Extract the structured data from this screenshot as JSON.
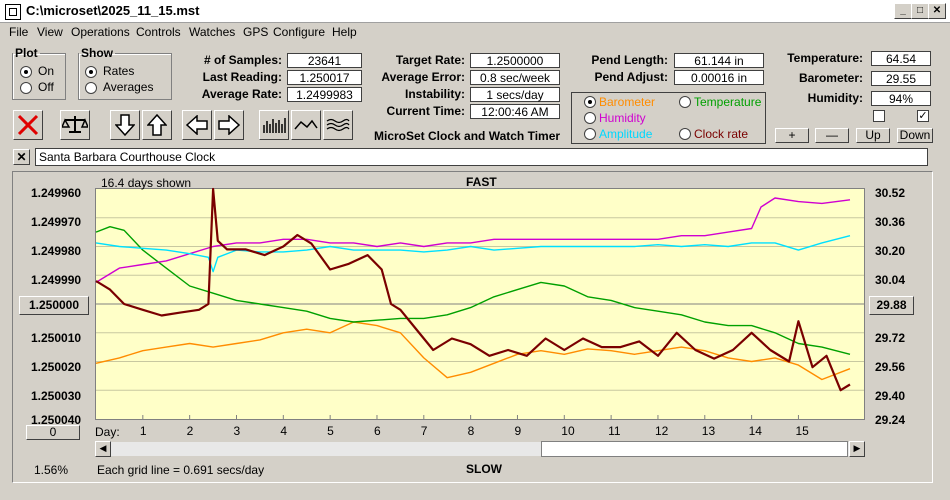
{
  "window": {
    "title": "C:\\microset\\2025_11_15.mst"
  },
  "menu": [
    "File",
    "View",
    "Operations",
    "Controls",
    "Watches",
    "GPS",
    "Configure",
    "Help"
  ],
  "plot_group": {
    "legend": "Plot",
    "on": "On",
    "off": "Off",
    "selected": "On"
  },
  "show_group": {
    "legend": "Show",
    "rates": "Rates",
    "averages": "Averages",
    "selected": "Rates"
  },
  "stats": {
    "samples_label": "# of Samples:",
    "samples": "23641",
    "last_label": "Last Reading:",
    "last": "1.250017",
    "avg_label": "Average Rate:",
    "avg": "1.2499983"
  },
  "targets": {
    "target_label": "Target Rate:",
    "target": "1.2500000",
    "error_label": "Average Error:",
    "error": "0.8 sec/week",
    "instab_label": "Instability:",
    "instab": "1 secs/day",
    "time_label": "Current Time:",
    "time": "12:00:46 AM",
    "app_name": "MicroSet Clock and Watch Timer"
  },
  "pendulum": {
    "length_label": "Pend Length:",
    "length": "61.144 in",
    "adjust_label": "Pend Adjust:",
    "adjust": "0.00016 in"
  },
  "env": {
    "temp_label": "Temperature:",
    "temp": "64.54",
    "baro_label": "Barometer:",
    "baro": "29.55",
    "hum_label": "Humidity:",
    "hum": "94%",
    "plus": "+",
    "minus": "—",
    "up": "Up",
    "down": "Down"
  },
  "aux_options": {
    "barometer": "Barometer",
    "temperature": "Temperature",
    "humidity": "Humidity",
    "amplitude": "Amplitude",
    "clock_rate": "Clock rate",
    "selected": "Barometer"
  },
  "clock_name": "Santa Barbara Courthouse Clock",
  "chart_data": {
    "type": "line",
    "days_shown": "16.4 days shown",
    "top_label": "FAST",
    "bottom_label": "SLOW",
    "left_ticks": [
      "1.249960",
      "1.249970",
      "1.249980",
      "1.249990",
      "1.250000",
      "1.250010",
      "1.250020",
      "1.250030",
      "1.250040"
    ],
    "left_center_button": "1.250000",
    "right_ticks": [
      "30.52",
      "30.36",
      "30.20",
      "30.04",
      "29.88",
      "29.72",
      "29.56",
      "29.40",
      "29.24"
    ],
    "right_center_button": "29.88",
    "x_label": "Day:",
    "x_ticks": [
      "1",
      "2",
      "3",
      "4",
      "5",
      "6",
      "7",
      "8",
      "9",
      "10",
      "11",
      "12",
      "13",
      "14",
      "15"
    ],
    "grid_note": "Each grid line = 0.691 secs/day",
    "zoom_button": "0",
    "percent": "1.56%",
    "ylim_rate": [
      1.24996,
      1.25004
    ],
    "ylim_baro": [
      29.24,
      30.52
    ],
    "xlim_days": [
      0,
      16.4
    ],
    "series": [
      {
        "name": "Clock rate",
        "color": "#7a0000",
        "x": [
          0,
          0.3,
          0.6,
          1,
          1.4,
          1.8,
          2.2,
          2.4,
          2.5,
          2.6,
          2.8,
          3.2,
          3.6,
          4,
          4.3,
          4.6,
          5,
          5.4,
          5.8,
          6.1,
          6.3,
          6.5,
          6.8,
          7.2,
          7.6,
          8,
          8.4,
          8.8,
          9.2,
          9.6,
          10,
          10.4,
          10.8,
          11.2,
          11.6,
          12,
          12.4,
          12.8,
          13.2,
          13.6,
          14,
          14.4,
          14.8,
          15,
          15.3,
          15.6,
          15.9,
          16.1
        ],
        "y": [
          1.249992,
          1.249995,
          1.25,
          1.250002,
          1.250004,
          1.250003,
          1.250002,
          1.25,
          1.24996,
          1.249978,
          1.249981,
          1.249981,
          1.249983,
          1.24998,
          1.249976,
          1.249979,
          1.249988,
          1.249986,
          1.249983,
          1.249988,
          1.25,
          1.250002,
          1.250008,
          1.250016,
          1.250012,
          1.250014,
          1.250018,
          1.250016,
          1.250018,
          1.250012,
          1.250016,
          1.250012,
          1.250015,
          1.250015,
          1.250013,
          1.250018,
          1.25001,
          1.250016,
          1.250019,
          1.250016,
          1.25001,
          1.250016,
          1.25002,
          1.250006,
          1.250022,
          1.250018,
          1.25003,
          1.250028
        ]
      },
      {
        "name": "Barometer",
        "color": "#ff8c00",
        "x": [
          0,
          0.5,
          1,
          1.5,
          2,
          2.5,
          3,
          3.5,
          4,
          4.5,
          5,
          5.5,
          6,
          6.5,
          7,
          7.5,
          8,
          8.5,
          9,
          9.5,
          10,
          10.5,
          11,
          11.5,
          12,
          12.5,
          13,
          13.5,
          14,
          14.5,
          15,
          15.5,
          16.1
        ],
        "y": [
          29.55,
          29.58,
          29.62,
          29.64,
          29.66,
          29.64,
          29.66,
          29.68,
          29.72,
          29.74,
          29.72,
          29.78,
          29.76,
          29.72,
          29.58,
          29.47,
          29.5,
          29.55,
          29.6,
          29.62,
          29.6,
          29.63,
          29.62,
          29.6,
          29.62,
          29.64,
          29.62,
          29.58,
          29.56,
          29.58,
          29.54,
          29.46,
          29.52
        ]
      },
      {
        "name": "Temperature",
        "color": "#00a000",
        "x": [
          0,
          0.3,
          0.6,
          1,
          1.5,
          2,
          2.5,
          3,
          3.5,
          4,
          4.5,
          5,
          5.5,
          6,
          6.5,
          7,
          7.5,
          8,
          8.5,
          9,
          9.5,
          10,
          10.5,
          11,
          11.5,
          12,
          12.5,
          13,
          13.5,
          14,
          14.5,
          15,
          15.5,
          16.1
        ],
        "y": [
          30.28,
          30.31,
          30.29,
          30.18,
          30.08,
          29.98,
          29.94,
          29.9,
          29.88,
          29.86,
          29.84,
          29.8,
          29.78,
          29.79,
          29.8,
          29.8,
          29.82,
          29.86,
          29.92,
          29.96,
          30.0,
          29.98,
          29.92,
          29.9,
          29.86,
          29.84,
          29.82,
          29.78,
          29.76,
          29.76,
          29.72,
          29.66,
          29.64,
          29.6
        ]
      },
      {
        "name": "Humidity",
        "color": "#d000d0",
        "x": [
          0,
          0.5,
          1,
          1.5,
          2,
          2.5,
          3,
          3.5,
          4,
          4.5,
          5,
          5.5,
          6,
          6.5,
          7,
          7.5,
          8,
          8.5,
          9,
          9.5,
          10,
          10.5,
          11,
          11.5,
          12,
          12.5,
          13,
          13.5,
          14,
          14.2,
          14.5,
          15,
          15.5,
          16.1
        ],
        "y": [
          30.0,
          30.08,
          30.1,
          30.12,
          30.16,
          30.2,
          30.22,
          30.22,
          30.24,
          30.24,
          30.22,
          30.22,
          30.2,
          30.22,
          30.2,
          30.22,
          30.22,
          30.24,
          30.24,
          30.24,
          30.24,
          30.24,
          30.24,
          30.24,
          30.24,
          30.26,
          30.26,
          30.28,
          30.3,
          30.42,
          30.47,
          30.45,
          30.44,
          30.46
        ]
      },
      {
        "name": "Amplitude",
        "color": "#00e0ff",
        "x": [
          0,
          0.5,
          1,
          1.5,
          2,
          2.4,
          2.5,
          2.6,
          3,
          3.5,
          4,
          4.5,
          5,
          5.5,
          6,
          6.5,
          7,
          7.5,
          8,
          8.5,
          9,
          9.5,
          10,
          10.5,
          11,
          11.5,
          12,
          12.5,
          13,
          13.5,
          14,
          14.5,
          15,
          15.5,
          16.1
        ],
        "y": [
          30.22,
          30.2,
          30.19,
          30.18,
          30.16,
          30.14,
          30.06,
          30.14,
          30.18,
          30.17,
          30.17,
          30.18,
          30.2,
          30.18,
          30.18,
          30.18,
          30.17,
          30.18,
          30.2,
          30.18,
          30.19,
          30.2,
          30.2,
          30.2,
          30.2,
          30.2,
          30.21,
          30.2,
          30.21,
          30.2,
          30.22,
          30.22,
          30.18,
          30.22,
          30.26
        ]
      }
    ]
  }
}
